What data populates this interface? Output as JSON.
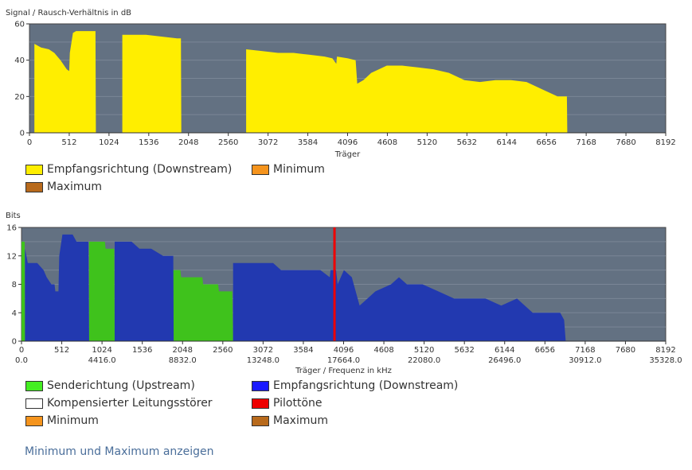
{
  "chart_data": [
    {
      "type": "area",
      "ylabel": "Signal / Rausch-Verhältnis in dB",
      "xlabel": "Träger",
      "xlim": [
        0,
        8192
      ],
      "ylim": [
        0,
        60
      ],
      "xticks": [
        0,
        512,
        1024,
        1536,
        2048,
        2560,
        3072,
        3584,
        4096,
        4608,
        5120,
        5632,
        6144,
        6656,
        7168,
        7680,
        8192
      ],
      "yticks": [
        0,
        20,
        40,
        60
      ],
      "grid": true,
      "legend": [
        {
          "name": "Empfangsrichtung (Downstream)",
          "color": "#ffee00"
        },
        {
          "name": "Minimum",
          "color": "#f5941d"
        },
        {
          "name": "Maximum",
          "color": "#b86a1c"
        }
      ],
      "series": [
        {
          "name": "Empfangsrichtung (Downstream)",
          "color": "#ffee00",
          "segments": [
            [
              [
                64,
                0
              ],
              [
                64,
                49
              ],
              [
                150,
                47
              ],
              [
                250,
                46
              ],
              [
                320,
                44
              ],
              [
                400,
                40
              ],
              [
                480,
                35
              ],
              [
                512,
                34
              ],
              [
                520,
                44
              ],
              [
                560,
                55
              ],
              [
                600,
                56
              ],
              [
                700,
                56
              ],
              [
                800,
                56
              ],
              [
                850,
                56
              ],
              [
                855,
                0
              ]
            ],
            [
              [
                1195,
                0
              ],
              [
                1195,
                54
              ],
              [
                1300,
                54
              ],
              [
                1500,
                54
              ],
              [
                1700,
                53
              ],
              [
                1900,
                52
              ],
              [
                1950,
                52
              ],
              [
                1955,
                0
              ]
            ],
            [
              [
                2790,
                0
              ],
              [
                2790,
                46
              ],
              [
                3000,
                45
              ],
              [
                3200,
                44
              ],
              [
                3400,
                44
              ],
              [
                3600,
                43
              ],
              [
                3800,
                42
              ],
              [
                3900,
                41
              ],
              [
                3950,
                38
              ],
              [
                3960,
                42
              ],
              [
                4100,
                41
              ],
              [
                4200,
                40
              ],
              [
                4220,
                27
              ],
              [
                4300,
                29
              ],
              [
                4400,
                33
              ],
              [
                4500,
                35
              ],
              [
                4600,
                37
              ],
              [
                4800,
                37
              ],
              [
                5000,
                36
              ],
              [
                5200,
                35
              ],
              [
                5400,
                33
              ],
              [
                5600,
                29
              ],
              [
                5800,
                28
              ],
              [
                6000,
                29
              ],
              [
                6200,
                29
              ],
              [
                6400,
                28
              ],
              [
                6600,
                24
              ],
              [
                6800,
                20
              ],
              [
                6920,
                20
              ],
              [
                6925,
                0
              ]
            ]
          ]
        }
      ]
    },
    {
      "type": "area",
      "ylabel": "Bits",
      "xlabel": "Träger / Frequenz in kHz",
      "xlim": [
        0,
        8192
      ],
      "ylim": [
        0,
        16
      ],
      "xticks": [
        0,
        512,
        1024,
        1536,
        2048,
        2560,
        3072,
        3584,
        4096,
        4608,
        5120,
        5632,
        6144,
        6656,
        7168,
        7680,
        8192
      ],
      "xticks_khz": [
        "0.0",
        "4416.0",
        "8832.0",
        "13248.0",
        "17664.0",
        "22080.0",
        "26496.0",
        "30912.0",
        "35328.0"
      ],
      "yticks": [
        0,
        4,
        8,
        12,
        16
      ],
      "grid": true,
      "legend": [
        {
          "name": "Senderichtung (Upstream)",
          "color": "#44cc11"
        },
        {
          "name": "Empfangsrichtung (Downstream)",
          "color": "#1a1aff"
        },
        {
          "name": "Kompensierter Leitungsstörer",
          "color": "#ffffff"
        },
        {
          "name": "Pilottöne",
          "color": "#ee0000"
        },
        {
          "name": "Minimum",
          "color": "#f5941d"
        },
        {
          "name": "Maximum",
          "color": "#b86a1c"
        }
      ],
      "series": [
        {
          "name": "Senderichtung (Upstream)",
          "color": "#3fc21c",
          "segments": [
            [
              [
                0,
                0
              ],
              [
                0,
                14
              ],
              [
                40,
                14
              ],
              [
                45,
                0
              ]
            ],
            [
              [
                860,
                0
              ],
              [
                860,
                14
              ],
              [
                1060,
                14
              ],
              [
                1070,
                13
              ],
              [
                1180,
                13
              ],
              [
                1185,
                0
              ]
            ],
            [
              [
                1930,
                0
              ],
              [
                1930,
                10
              ],
              [
                2020,
                10
              ],
              [
                2030,
                9
              ],
              [
                2300,
                9
              ],
              [
                2310,
                8
              ],
              [
                2500,
                8
              ],
              [
                2510,
                7
              ],
              [
                2680,
                7
              ],
              [
                2690,
                0
              ]
            ]
          ]
        },
        {
          "name": "Empfangsrichtung (Downstream)",
          "color": "#2239b0",
          "segments": [
            [
              [
                45,
                0
              ],
              [
                45,
                13
              ],
              [
                80,
                11
              ],
              [
                200,
                11
              ],
              [
                280,
                10
              ],
              [
                320,
                9
              ],
              [
                380,
                8
              ],
              [
                420,
                8
              ],
              [
                430,
                7
              ],
              [
                470,
                7
              ],
              [
                480,
                12
              ],
              [
                520,
                15
              ],
              [
                650,
                15
              ],
              [
                700,
                14
              ],
              [
                800,
                14
              ],
              [
                850,
                14
              ],
              [
                860,
                0
              ]
            ],
            [
              [
                1185,
                0
              ],
              [
                1185,
                14
              ],
              [
                1300,
                14
              ],
              [
                1400,
                14
              ],
              [
                1500,
                13
              ],
              [
                1650,
                13
              ],
              [
                1800,
                12
              ],
              [
                1930,
                12
              ],
              [
                1935,
                0
              ]
            ],
            [
              [
                2690,
                0
              ],
              [
                2690,
                11
              ],
              [
                3200,
                11
              ],
              [
                3300,
                10
              ],
              [
                3500,
                10
              ],
              [
                3600,
                10
              ],
              [
                3800,
                10
              ],
              [
                3920,
                9
              ],
              [
                3930,
                10
              ],
              [
                4000,
                10
              ],
              [
                4020,
                8
              ],
              [
                4100,
                10
              ],
              [
                4200,
                9
              ],
              [
                4300,
                5
              ],
              [
                4400,
                6
              ],
              [
                4500,
                7
              ],
              [
                4700,
                8
              ],
              [
                4800,
                9
              ],
              [
                4900,
                8
              ],
              [
                5100,
                8
              ],
              [
                5300,
                7
              ],
              [
                5500,
                6
              ],
              [
                5700,
                6
              ],
              [
                5900,
                6
              ],
              [
                6100,
                5
              ],
              [
                6300,
                6
              ],
              [
                6400,
                5
              ],
              [
                6500,
                4
              ],
              [
                6700,
                4
              ],
              [
                6850,
                4
              ],
              [
                6900,
                3
              ],
              [
                6920,
                0
              ]
            ]
          ]
        }
      ],
      "pilot_tones": [
        3980
      ]
    }
  ],
  "legend1": {
    "item1": "Empfangsrichtung (Downstream)",
    "item2": "Minimum",
    "item3": "Maximum"
  },
  "legend2": {
    "item1": "Senderichtung (Upstream)",
    "item2": "Empfangsrichtung (Downstream)",
    "item3": "Kompensierter Leitungsstörer",
    "item4": "Pilottöne",
    "item5": "Minimum",
    "item6": "Maximum"
  },
  "toggle_link": "Minimum und Maximum anzeigen",
  "colors": {
    "plot_bg": "#637182",
    "grid": "#7a8696"
  }
}
